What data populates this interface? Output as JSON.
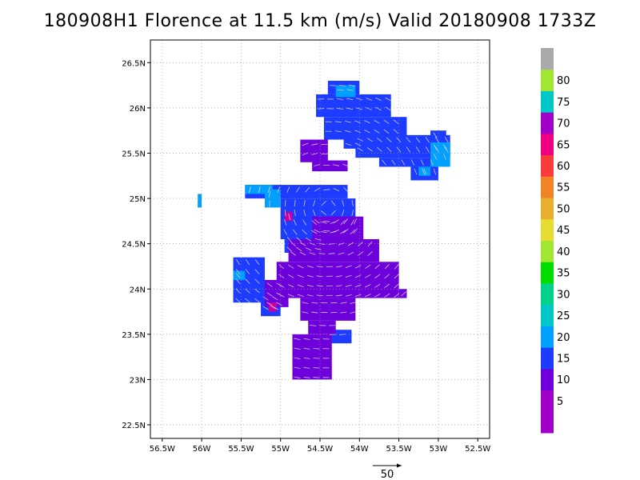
{
  "title": "180908H1 Florence at 11.5 km (m/s) Valid 20180908  1733Z",
  "map": {
    "lon_range": [
      -56.65,
      -52.35
    ],
    "lat_range": [
      22.35,
      26.75
    ],
    "lon_ticks": [
      {
        "lon": -56.5,
        "label": "56.5W"
      },
      {
        "lon": -56,
        "label": "56W"
      },
      {
        "lon": -55.5,
        "label": "55.5W"
      },
      {
        "lon": -55,
        "label": "55W"
      },
      {
        "lon": -54.5,
        "label": "54.5W"
      },
      {
        "lon": -54,
        "label": "54W"
      },
      {
        "lon": -53.5,
        "label": "53.5W"
      },
      {
        "lon": -53,
        "label": "53W"
      },
      {
        "lon": -52.5,
        "label": "52.5W"
      }
    ],
    "lat_ticks": [
      {
        "lat": 22.5,
        "label": "22.5N"
      },
      {
        "lat": 23,
        "label": "23N"
      },
      {
        "lat": 23.5,
        "label": "23.5N"
      },
      {
        "lat": 24,
        "label": "24N"
      },
      {
        "lat": 24.5,
        "label": "24.5N"
      },
      {
        "lat": 25,
        "label": "25N"
      },
      {
        "lat": 25.5,
        "label": "25.5N"
      },
      {
        "lat": 26,
        "label": "26N"
      },
      {
        "lat": 26.5,
        "label": "26.5N"
      }
    ],
    "grid": true
  },
  "colorbar": {
    "levels": [
      {
        "label": "",
        "color": "#a000c8"
      },
      {
        "label": "5",
        "color": "#a000c8"
      },
      {
        "label": "10",
        "color": "#6e00dc"
      },
      {
        "label": "15",
        "color": "#1e3cff"
      },
      {
        "label": "20",
        "color": "#00a0ff"
      },
      {
        "label": "25",
        "color": "#00c8c8"
      },
      {
        "label": "30",
        "color": "#00d28c"
      },
      {
        "label": "35",
        "color": "#00dc00"
      },
      {
        "label": "40",
        "color": "#a0e632"
      },
      {
        "label": "45",
        "color": "#e6dc32"
      },
      {
        "label": "50",
        "color": "#e6af2d"
      },
      {
        "label": "55",
        "color": "#f08228"
      },
      {
        "label": "60",
        "color": "#fa3c3c"
      },
      {
        "label": "65",
        "color": "#f00082"
      },
      {
        "label": "70",
        "color": "#a000c8"
      },
      {
        "label": "75",
        "color": "#00c8c8"
      },
      {
        "label": "80",
        "color": "#a0e632"
      },
      {
        "label": "",
        "color": "#aaaaaa"
      }
    ]
  },
  "reference_vector": {
    "label": "50"
  },
  "regions": [
    {
      "name": "north-blue",
      "color": "#1e3cff",
      "cells": [
        [
          -54.4,
          26.15,
          -54.0,
          26.3
        ],
        [
          -54.55,
          25.9,
          -53.6,
          26.15
        ],
        [
          -54.45,
          25.65,
          -53.4,
          25.9
        ],
        [
          -54.05,
          25.45,
          -52.85,
          25.7
        ],
        [
          -53.75,
          25.35,
          -53.05,
          25.45
        ],
        [
          -53.35,
          25.2,
          -53.0,
          25.35
        ],
        [
          -53.1,
          25.6,
          -52.9,
          25.75
        ],
        [
          -54.2,
          25.55,
          -53.95,
          25.65
        ]
      ]
    },
    {
      "name": "north-purple",
      "color": "#6e00dc",
      "cells": [
        [
          -54.75,
          25.4,
          -54.4,
          25.65
        ],
        [
          -54.6,
          25.3,
          -54.15,
          25.42
        ]
      ]
    },
    {
      "name": "north-cyan",
      "color": "#00a0ff",
      "cells": [
        [
          -54.3,
          26.12,
          -54.05,
          26.25
        ],
        [
          -53.1,
          25.35,
          -52.85,
          25.62
        ],
        [
          -53.25,
          25.25,
          -53.1,
          25.35
        ]
      ]
    },
    {
      "name": "middle-blue",
      "color": "#1e3cff",
      "cells": [
        [
          -55.45,
          25.0,
          -54.15,
          25.15
        ],
        [
          -55.0,
          24.55,
          -54.05,
          25.0
        ],
        [
          -54.95,
          24.4,
          -54.45,
          24.6
        ],
        [
          -55.6,
          23.85,
          -55.2,
          24.35
        ],
        [
          -55.25,
          23.7,
          -55.0,
          23.95
        ],
        [
          -54.4,
          23.4,
          -54.1,
          23.55
        ]
      ]
    },
    {
      "name": "middle-purple",
      "color": "#6e00dc",
      "cells": [
        [
          -54.6,
          24.55,
          -53.95,
          24.8
        ],
        [
          -54.9,
          24.3,
          -53.75,
          24.55
        ],
        [
          -55.05,
          23.9,
          -53.5,
          24.3
        ],
        [
          -54.75,
          23.65,
          -54.05,
          23.9
        ],
        [
          -54.65,
          23.5,
          -54.3,
          23.65
        ],
        [
          -54.85,
          23.0,
          -54.35,
          23.5
        ],
        [
          -55.2,
          23.8,
          -54.9,
          24.1
        ],
        [
          -53.5,
          23.9,
          -53.4,
          24.0
        ]
      ]
    },
    {
      "name": "middle-cyan",
      "color": "#00a0ff",
      "cells": [
        [
          -55.45,
          25.05,
          -55.1,
          25.15
        ],
        [
          -55.2,
          24.9,
          -55.0,
          25.1
        ],
        [
          -55.6,
          24.1,
          -55.45,
          24.2
        ],
        [
          -56.05,
          24.9,
          -56.0,
          25.05
        ]
      ]
    },
    {
      "name": "middle-magenta",
      "color": "#c800a0",
      "cells": [
        [
          -54.95,
          24.75,
          -54.85,
          24.85
        ],
        [
          -55.15,
          23.75,
          -55.05,
          23.85
        ]
      ]
    }
  ]
}
